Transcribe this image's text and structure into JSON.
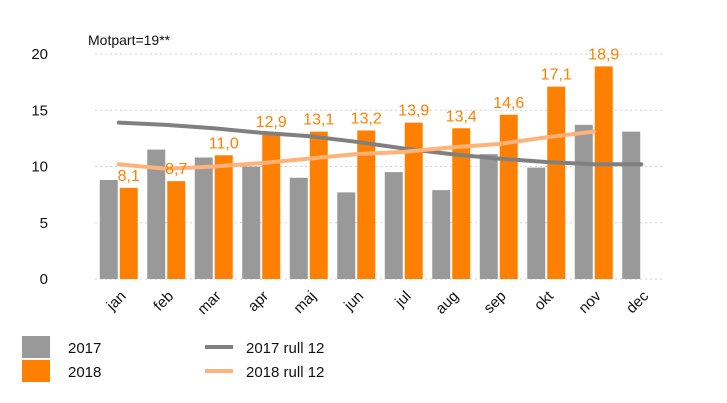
{
  "chart_data": {
    "type": "bar",
    "annotation": "Motpart=19**",
    "categories": [
      "jan",
      "feb",
      "mar",
      "apr",
      "maj",
      "jun",
      "jul",
      "aug",
      "sep",
      "okt",
      "nov",
      "dec"
    ],
    "y_ticks": [
      "0",
      "5",
      "10",
      "15",
      "20"
    ],
    "ylim": [
      0,
      20
    ],
    "grid": "horizontal dotted",
    "legend_position": "bottom-left",
    "series": [
      {
        "name": "2017",
        "kind": "bar",
        "color": "#999999",
        "values": [
          8.8,
          11.5,
          10.8,
          10.0,
          9.0,
          7.7,
          9.5,
          7.9,
          11.1,
          9.9,
          13.7,
          13.1
        ]
      },
      {
        "name": "2018",
        "kind": "bar",
        "color": "#ff8000",
        "values": [
          8.1,
          8.7,
          11.0,
          12.9,
          13.1,
          13.2,
          13.9,
          13.4,
          14.6,
          17.1,
          18.9,
          null
        ],
        "labels": [
          "8,1",
          "8,7",
          "11,0",
          "12,9",
          "13,1",
          "13,2",
          "13,9",
          "13,4",
          "14,6",
          "17,1",
          "18,9",
          ""
        ]
      },
      {
        "name": "2017 rull 12",
        "kind": "line",
        "color": "#808080",
        "values": [
          13.9,
          13.7,
          13.4,
          13.0,
          12.7,
          12.2,
          11.6,
          11.1,
          10.7,
          10.4,
          10.2,
          10.2
        ]
      },
      {
        "name": "2018 rull 12",
        "kind": "line",
        "color": "#ffb27a",
        "values": [
          10.2,
          9.8,
          10.0,
          10.3,
          10.7,
          11.1,
          11.3,
          11.7,
          12.0,
          12.6,
          13.1,
          null
        ]
      }
    ]
  }
}
